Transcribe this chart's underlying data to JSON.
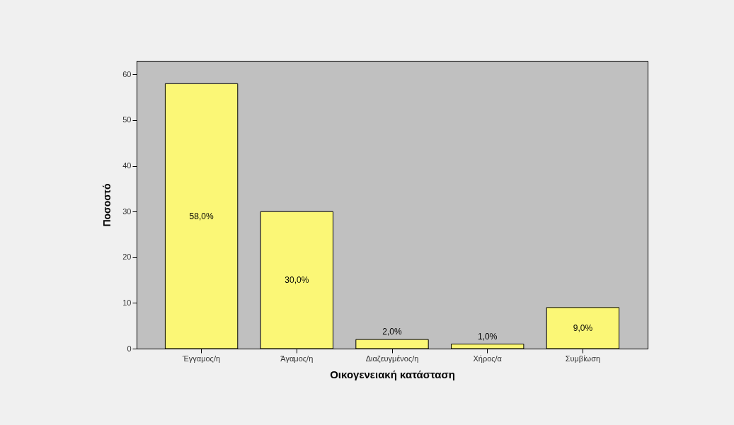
{
  "chart_data": {
    "type": "bar",
    "xlabel": "Οικογενειακή κατάσταση",
    "ylabel": "Ποσοστό",
    "categories": [
      "Έγγαμος/η",
      "Άγαμος/η",
      "Διαζευγμένος/η",
      "Χήρος/α",
      "Συμβίωση"
    ],
    "values": [
      58,
      30,
      2,
      1,
      9
    ],
    "value_labels": [
      "58,0%",
      "30,0%",
      "2,0%",
      "1,0%",
      "9,0%"
    ],
    "color": "#fbf776",
    "ylim": [
      0,
      63
    ],
    "yticks": [
      0,
      10,
      20,
      30,
      40,
      50,
      60
    ]
  }
}
